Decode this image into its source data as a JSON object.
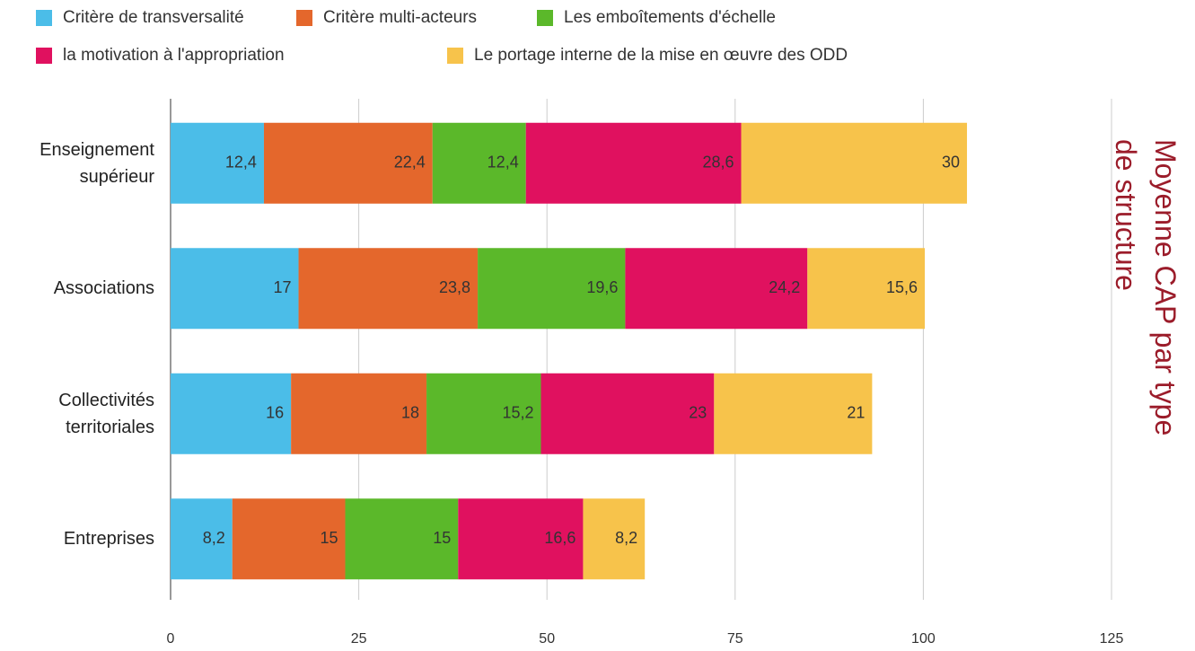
{
  "chart_data": {
    "type": "stacked_bar_horizontal",
    "title": "Moyenne CAP par type de structure",
    "categories": [
      "Enseignement supérieur",
      "Associations",
      "Collectivités territoriales",
      "Entreprises"
    ],
    "series": [
      {
        "name": "Critère de transversalité",
        "color": "#4bbde8",
        "values": [
          12.4,
          17,
          16,
          8.2
        ],
        "value_labels": [
          "12,4",
          "17",
          "16",
          "8,2"
        ]
      },
      {
        "name": "Critère multi-acteurs",
        "color": "#e4672c",
        "values": [
          22.4,
          23.8,
          18,
          15
        ],
        "value_labels": [
          "22,4",
          "23,8",
          "18",
          "15"
        ]
      },
      {
        "name": "Les emboîtements d'échelle",
        "color": "#5bb82a",
        "values": [
          12.4,
          19.6,
          15.2,
          15
        ],
        "value_labels": [
          "12,4",
          "19,6",
          "15,2",
          "15"
        ]
      },
      {
        "name": "la motivation à l'appropriation",
        "color": "#e0115f",
        "values": [
          28.6,
          24.2,
          23,
          16.6
        ],
        "value_labels": [
          "28,6",
          "24,2",
          "23",
          "16,6"
        ]
      },
      {
        "name": "Le portage interne de la mise en œuvre des ODD",
        "color": "#f7c34b",
        "values": [
          30,
          15.6,
          21,
          8.2
        ],
        "value_labels": [
          "30",
          "15,6",
          "21",
          "8,2"
        ]
      }
    ],
    "xlim": [
      0,
      125
    ],
    "xticks": [
      0,
      25,
      50,
      75,
      100,
      125
    ],
    "grid": true
  }
}
